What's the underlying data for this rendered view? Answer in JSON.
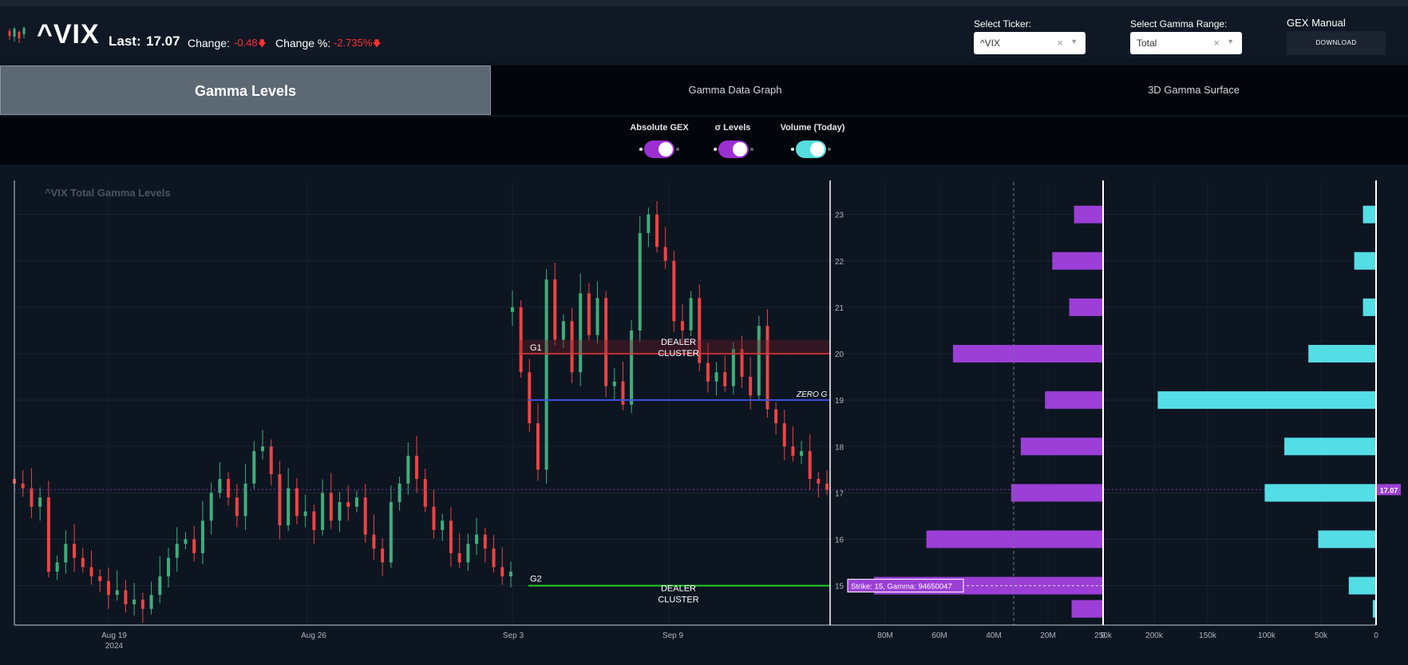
{
  "header": {
    "ticker": "^VIX",
    "last_label": "Last:",
    "last_value": "17.07",
    "change_label": "Change:",
    "change_value": "-0.48",
    "change_pct_label": "Change %:",
    "change_pct_value": "-2.735%",
    "select_ticker_label": "Select Ticker:",
    "select_ticker_value": "^VIX",
    "select_range_label": "Select Gamma Range:",
    "select_range_value": "Total",
    "gex_manual_label": "GEX Manual",
    "download_label": "DOWNLOAD"
  },
  "tabs": [
    {
      "label": "Gamma Levels",
      "active": true
    },
    {
      "label": "Gamma Data Graph",
      "active": false
    },
    {
      "label": "3D Gamma Surface",
      "active": false
    }
  ],
  "toggles": [
    {
      "label": "Absolute GEX",
      "on": true,
      "color": "#9b30d0"
    },
    {
      "label": "σ Levels",
      "on": true,
      "color": "#9b30d0"
    },
    {
      "label": "Volume (Today)",
      "on": true,
      "color": "#55dde0"
    }
  ],
  "colors": {
    "up": "#3fae7a",
    "down": "#ef4343",
    "gex": "#9b3fd6",
    "volume": "#55dde6",
    "g1": "#e03c3c",
    "zero_g": "#3a55e0",
    "g2": "#22cc22"
  },
  "chart_data": [
    {
      "type": "candlestick",
      "title": "^VIX Total Gamma Levels",
      "x_ticks": [
        "Aug 19",
        "Aug 26",
        "Sep 3",
        "Sep 9"
      ],
      "x_subtick": "2024",
      "y_ticks": [
        "15",
        "16",
        "17",
        "18",
        "19",
        "20",
        "21",
        "22",
        "23"
      ],
      "ylim": [
        14.15,
        23.7
      ],
      "last_price": 17.07,
      "last_price_label": "17.07",
      "levels": [
        {
          "name": "G1",
          "value": 20,
          "annotation": "DEALER CLUSTER"
        },
        {
          "name": "ZERO G",
          "value": 19
        },
        {
          "name": "G2",
          "value": 15,
          "annotation": "DEALER CLUSTER"
        }
      ],
      "closes": [
        17.2,
        17.1,
        16.7,
        16.9,
        15.3,
        15.5,
        15.9,
        15.6,
        15.4,
        15.2,
        15.1,
        14.8,
        14.9,
        14.6,
        14.7,
        14.5,
        14.8,
        15.2,
        15.6,
        15.9,
        16.0,
        15.7,
        16.4,
        17.0,
        17.3,
        16.9,
        16.5,
        17.2,
        17.9,
        18.0,
        17.4,
        16.3,
        17.1,
        16.5,
        16.6,
        16.2,
        17.0,
        16.4,
        16.8,
        16.7,
        16.9,
        16.1,
        15.8,
        15.5,
        16.8,
        17.2,
        17.8,
        17.3,
        16.7,
        16.2,
        16.4,
        15.7,
        15.5,
        15.9,
        16.1,
        15.8,
        15.4,
        15.2,
        15.3,
        21.0,
        19.6,
        18.5,
        17.5,
        21.6,
        20.3,
        20.7,
        19.6,
        21.3,
        20.4,
        21.2,
        19.3,
        19.4,
        18.9,
        20.5,
        22.6,
        23.0,
        22.3,
        22.0,
        20.7,
        20.5,
        21.2,
        19.8,
        19.4,
        19.6,
        19.3,
        20.1,
        19.5,
        19.1,
        20.6,
        18.8,
        18.5,
        18.0,
        17.8,
        17.9,
        17.3,
        17.2,
        17.07
      ]
    },
    {
      "type": "bar",
      "title": "Absolute GEX",
      "categories": [
        "23",
        "22",
        "21",
        "20",
        "19",
        "18",
        "17",
        "16",
        "15",
        "14.5"
      ],
      "values": [
        12000000,
        21000000,
        14000000,
        62000000,
        24000000,
        34000000,
        38000000,
        73000000,
        94650047,
        13000000
      ],
      "x_ticks": [
        "80M",
        "60M",
        "40M",
        "20M",
        "0"
      ],
      "hover_label": "Strike: 15, Gamma: 94650047"
    },
    {
      "type": "bar",
      "title": "Volume (Today)",
      "categories": [
        "23",
        "22",
        "21",
        "20",
        "19",
        "18",
        "17",
        "16",
        "15",
        "14.5"
      ],
      "values": [
        12000,
        20000,
        12000,
        62000,
        200000,
        84000,
        102000,
        53000,
        25000,
        3000
      ],
      "x_ticks": [
        "250k",
        "200k",
        "150k",
        "100k",
        "50k",
        "0"
      ]
    }
  ]
}
